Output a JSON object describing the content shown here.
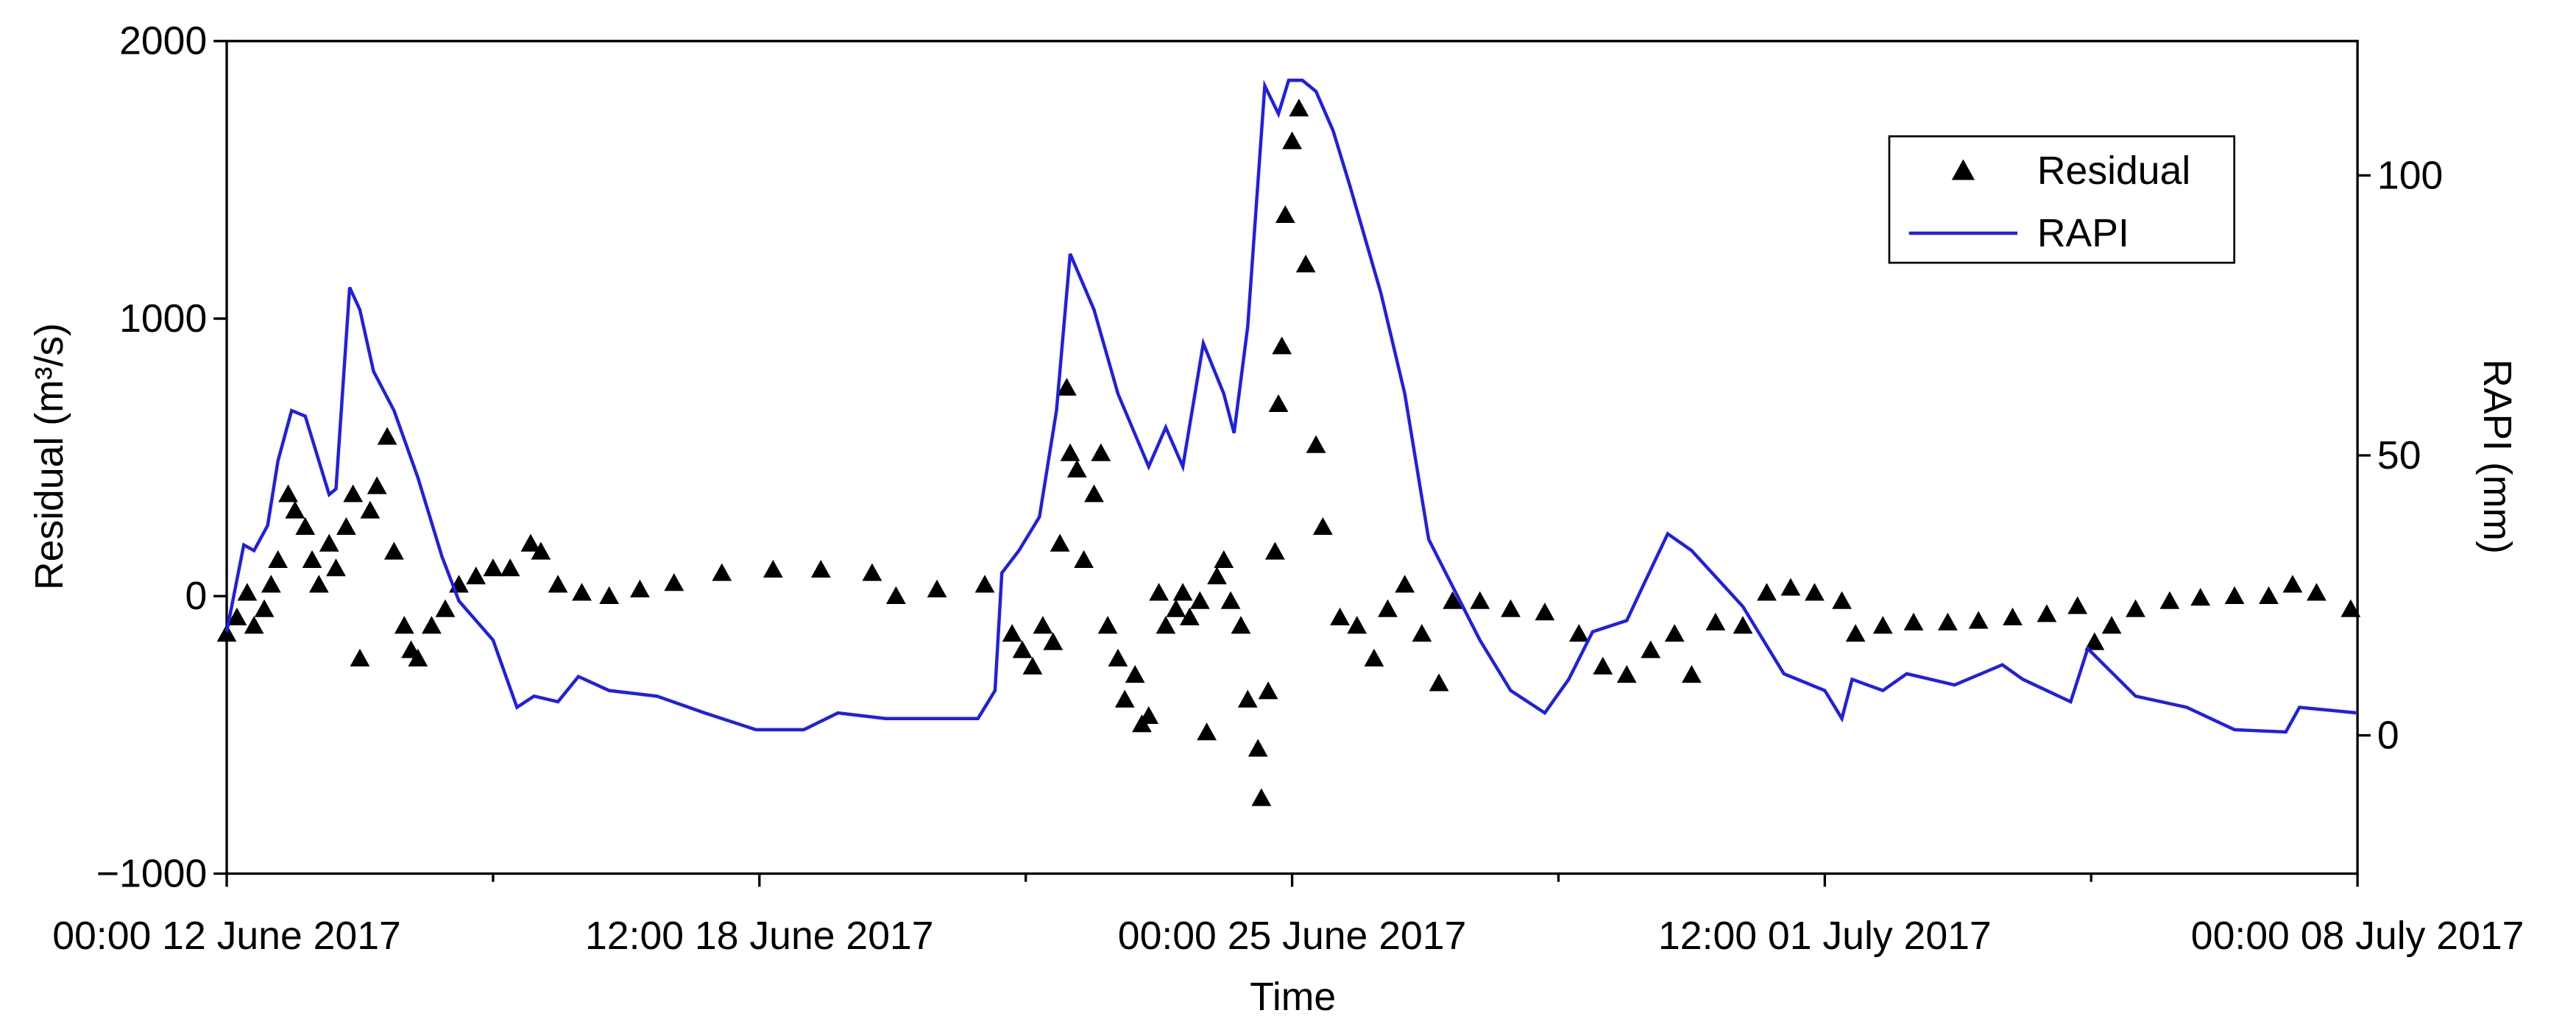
{
  "chart_data": {
    "type": "line",
    "xlabel": "Time",
    "ylabel": "Residual (m³/s)",
    "y2label": "RAPI (mm)",
    "xlim": [
      "2017-06-12T00:00",
      "2017-07-08T00:00"
    ],
    "xticks": [
      {
        "value": "2017-06-12T00:00",
        "label": "00:00 12 June 2017"
      },
      {
        "value": "2017-06-18T12:00",
        "label": "12:00 18 June 2017"
      },
      {
        "value": "2017-06-25T00:00",
        "label": "00:00 25 June 2017"
      },
      {
        "value": "2017-07-01T12:00",
        "label": "12:00 01 July 2017"
      },
      {
        "value": "2017-07-08T00:00",
        "label": "00:00 08 July 2017"
      }
    ],
    "xminor_ticks": [
      "2017-06-15T06:00",
      "2017-06-21T18:00",
      "2017-06-28T06:00",
      "2017-07-04T18:00"
    ],
    "ylim": [
      -1000,
      2000
    ],
    "yticks": [
      {
        "value": -1000,
        "label": "−1000"
      },
      0,
      1000,
      2000
    ],
    "y2lim": [
      -24.7,
      124
    ],
    "y2ticks": [
      0,
      50,
      100
    ],
    "legend": "upper right",
    "series": [
      {
        "name": "Residual",
        "type": "scatter",
        "marker": "triangle",
        "color": "#000000",
        "x": [
          "2017-06-12T00:00",
          "2017-06-12T03:00",
          "2017-06-12T06:00",
          "2017-06-12T08:00",
          "2017-06-12T11:00",
          "2017-06-12T13:00",
          "2017-06-12T15:00",
          "2017-06-12T18:00",
          "2017-06-12T20:00",
          "2017-06-12T23:00",
          "2017-06-13T01:00",
          "2017-06-13T03:00",
          "2017-06-13T06:00",
          "2017-06-13T08:00",
          "2017-06-13T11:00",
          "2017-06-13T13:00",
          "2017-06-13T15:00",
          "2017-06-13T18:00",
          "2017-06-13T20:00",
          "2017-06-13T23:00",
          "2017-06-14T01:00",
          "2017-06-14T04:00",
          "2017-06-14T06:00",
          "2017-06-14T08:00",
          "2017-06-14T12:00",
          "2017-06-14T16:00",
          "2017-06-14T20:00",
          "2017-06-15T01:00",
          "2017-06-15T06:00",
          "2017-06-15T11:00",
          "2017-06-15T17:00",
          "2017-06-15T20:00",
          "2017-06-16T01:00",
          "2017-06-16T08:00",
          "2017-06-16T16:00",
          "2017-06-17T01:00",
          "2017-06-17T11:00",
          "2017-06-18T01:00",
          "2017-06-18T16:00",
          "2017-06-19T06:00",
          "2017-06-19T21:00",
          "2017-06-20T04:00",
          "2017-06-20T16:00",
          "2017-06-21T06:00",
          "2017-06-21T14:00",
          "2017-06-21T17:00",
          "2017-06-21T20:00",
          "2017-06-21T23:00",
          "2017-06-22T02:00",
          "2017-06-22T04:00",
          "2017-06-22T06:00",
          "2017-06-22T07:00",
          "2017-06-22T09:00",
          "2017-06-22T11:00",
          "2017-06-22T14:00",
          "2017-06-22T16:00",
          "2017-06-22T18:00",
          "2017-06-22T21:00",
          "2017-06-22T23:00",
          "2017-06-23T02:00",
          "2017-06-23T04:00",
          "2017-06-23T06:00",
          "2017-06-23T09:00",
          "2017-06-23T11:00",
          "2017-06-23T14:00",
          "2017-06-23T16:00",
          "2017-06-23T18:00",
          "2017-06-23T21:00",
          "2017-06-23T23:00",
          "2017-06-24T02:00",
          "2017-06-24T04:00",
          "2017-06-24T06:00",
          "2017-06-24T09:00",
          "2017-06-24T11:00",
          "2017-06-24T14:00",
          "2017-06-24T15:00",
          "2017-06-24T17:00",
          "2017-06-24T19:00",
          "2017-06-24T20:00",
          "2017-06-24T21:00",
          "2017-06-24T22:00",
          "2017-06-25T00:00",
          "2017-06-25T02:00",
          "2017-06-25T04:00",
          "2017-06-25T07:00",
          "2017-06-25T09:00",
          "2017-06-25T14:00",
          "2017-06-25T19:00",
          "2017-06-26T00:00",
          "2017-06-26T04:00",
          "2017-06-26T09:00",
          "2017-06-26T14:00",
          "2017-06-26T19:00",
          "2017-06-26T23:00",
          "2017-06-27T07:00",
          "2017-06-27T16:00",
          "2017-06-28T02:00",
          "2017-06-28T12:00",
          "2017-06-28T19:00",
          "2017-06-29T02:00",
          "2017-06-29T09:00",
          "2017-06-29T16:00",
          "2017-06-29T21:00",
          "2017-06-30T04:00",
          "2017-06-30T12:00",
          "2017-06-30T19:00",
          "2017-07-01T02:00",
          "2017-07-01T09:00",
          "2017-07-01T17:00",
          "2017-07-01T21:00",
          "2017-07-02T05:00",
          "2017-07-02T14:00",
          "2017-07-03T00:00",
          "2017-07-03T09:00",
          "2017-07-03T19:00",
          "2017-07-04T05:00",
          "2017-07-04T14:00",
          "2017-07-04T19:00",
          "2017-07-05T00:00",
          "2017-07-05T07:00",
          "2017-07-05T17:00",
          "2017-07-06T02:00",
          "2017-07-06T12:00",
          "2017-07-06T22:00",
          "2017-07-07T05:00",
          "2017-07-07T12:00",
          "2017-07-07T22:00"
        ],
        "values": [
          -136,
          -77,
          12,
          -107,
          -47,
          41,
          130,
          367,
          308,
          249,
          130,
          41,
          189,
          100,
          249,
          367,
          -225,
          308,
          396,
          574,
          160,
          -107,
          -195,
          -225,
          -107,
          -47,
          41,
          71,
          100,
          100,
          189,
          160,
          41,
          12,
          0,
          24,
          47,
          83,
          95,
          95,
          83,
          0,
          24,
          41,
          -136,
          -195,
          -254,
          -107,
          -166,
          189,
          751,
          515,
          456,
          130,
          367,
          515,
          -107,
          -225,
          -373,
          -284,
          -462,
          -432,
          12,
          -107,
          -47,
          12,
          -77,
          -18,
          -491,
          71,
          130,
          -18,
          -107,
          -373,
          -550,
          -728,
          -343,
          160,
          692,
          900,
          1373,
          1639,
          1757,
          1195,
          544,
          249,
          -77,
          -107,
          -225,
          -47,
          41,
          -136,
          -314,
          -18,
          -18,
          -47,
          -59,
          -136,
          -254,
          -284,
          -195,
          -136,
          -284,
          -95,
          -107,
          12,
          30,
          12,
          -18,
          -136,
          -107,
          -95,
          -95,
          -89,
          -77,
          -65,
          -36,
          -166,
          -107,
          -47,
          -18,
          -6,
          0,
          0,
          41,
          12,
          -47
        ]
      },
      {
        "name": "RAPI",
        "type": "line",
        "axis": "y2",
        "color": "#1f1fe6",
        "x": [
          "2017-06-12T00:00",
          "2017-06-12T05:00",
          "2017-06-12T08:00",
          "2017-06-12T12:00",
          "2017-06-12T15:00",
          "2017-06-12T19:00",
          "2017-06-12T23:00",
          "2017-06-13T02:00",
          "2017-06-13T06:00",
          "2017-06-13T08:00",
          "2017-06-13T12:00",
          "2017-06-13T15:00",
          "2017-06-13T19:00",
          "2017-06-14T01:00",
          "2017-06-14T08:00",
          "2017-06-14T15:00",
          "2017-06-14T20:00",
          "2017-06-15T06:00",
          "2017-06-15T13:00",
          "2017-06-15T18:00",
          "2017-06-16T01:00",
          "2017-06-16T07:00",
          "2017-06-16T16:00",
          "2017-06-17T06:00",
          "2017-06-17T20:00",
          "2017-06-18T11:00",
          "2017-06-19T01:00",
          "2017-06-19T11:00",
          "2017-06-20T01:00",
          "2017-06-20T16:00",
          "2017-06-21T04:00",
          "2017-06-21T09:00",
          "2017-06-21T11:00",
          "2017-06-21T16:00",
          "2017-06-21T22:00",
          "2017-06-22T03:00",
          "2017-06-22T07:00",
          "2017-06-22T14:00",
          "2017-06-22T21:00",
          "2017-06-23T06:00",
          "2017-06-23T11:00",
          "2017-06-23T16:00",
          "2017-06-23T22:00",
          "2017-06-24T04:00",
          "2017-06-24T07:00",
          "2017-06-24T11:00",
          "2017-06-24T16:00",
          "2017-06-24T20:00",
          "2017-06-24T23:00",
          "2017-06-25T03:00",
          "2017-06-25T07:00",
          "2017-06-25T12:00",
          "2017-06-25T17:00",
          "2017-06-26T02:00",
          "2017-06-26T09:00",
          "2017-06-26T16:00",
          "2017-06-26T21:00",
          "2017-06-27T07:00",
          "2017-06-27T16:00",
          "2017-06-28T02:00",
          "2017-06-28T09:00",
          "2017-06-28T16:00",
          "2017-06-29T02:00",
          "2017-06-29T07:00",
          "2017-06-29T14:00",
          "2017-06-29T21:00",
          "2017-06-30T12:00",
          "2017-07-01T00:00",
          "2017-07-01T12:00",
          "2017-07-01T17:00",
          "2017-07-01T20:00",
          "2017-07-02T05:00",
          "2017-07-02T12:00",
          "2017-07-03T02:00",
          "2017-07-03T16:00",
          "2017-07-03T22:00",
          "2017-07-04T12:00",
          "2017-07-04T17:00",
          "2017-07-05T07:00",
          "2017-07-05T22:00",
          "2017-07-06T12:00",
          "2017-07-07T03:00",
          "2017-07-07T07:00",
          "2017-07-08T00:00"
        ],
        "values": [
          18.5,
          34,
          33,
          37.5,
          49,
          58,
          57,
          51,
          43,
          44,
          80,
          76,
          65,
          58,
          46,
          32,
          24,
          17,
          5,
          7,
          6,
          10.5,
          8,
          7,
          4,
          1,
          1,
          4,
          3,
          3,
          3,
          8,
          29,
          33,
          39,
          58,
          86,
          76,
          61,
          48,
          55,
          48,
          70,
          61,
          54,
          73,
          116,
          111,
          117,
          117,
          115,
          108,
          98,
          79,
          61,
          35,
          29,
          17,
          8,
          4,
          10,
          18.5,
          20.5,
          27,
          36,
          33,
          23,
          11,
          8,
          3,
          10,
          8,
          11,
          9,
          12.6,
          10,
          6,
          15.5,
          7,
          5,
          1,
          0.6,
          5,
          4
        ]
      }
    ]
  }
}
